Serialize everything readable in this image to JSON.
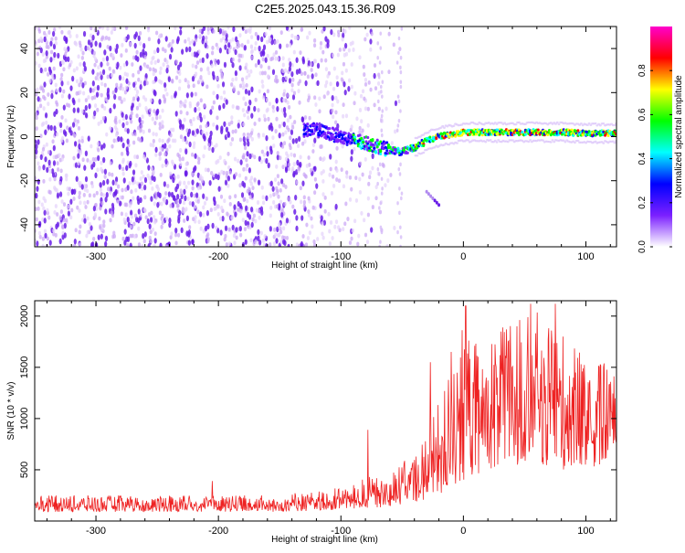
{
  "figure": {
    "title": "C2E5.2025.043.15.36.R09"
  },
  "chart_data": [
    {
      "type": "heatmap",
      "xlabel": "Height of straight line (km)",
      "ylabel": "Frequency (Hz)",
      "xlim": [
        -350,
        125
      ],
      "ylim": [
        -50,
        50
      ],
      "x_ticks": [
        -300,
        -200,
        -100,
        0,
        100
      ],
      "y_ticks": [
        -40,
        -20,
        0,
        20,
        40
      ],
      "ridge": {
        "x": [
          -120,
          -100,
          -80,
          -60,
          -50,
          -40,
          -30,
          -20,
          -10,
          0,
          20,
          40,
          60,
          80,
          100,
          125
        ],
        "y": [
          3,
          0,
          -3,
          -6,
          -7,
          -5,
          -2,
          0,
          1,
          2,
          2,
          2,
          2,
          2,
          1.5,
          1.5
        ]
      },
      "noise_extent_x": [
        -350,
        -50
      ],
      "isolated_feature": {
        "x": [
          -30,
          -20
        ],
        "y": [
          -25,
          -31
        ]
      },
      "colorbar": {
        "label": "Normalized spectral amplitude",
        "range": [
          0.0,
          1.0
        ],
        "ticks": [
          0.0,
          0.2,
          0.4,
          0.6,
          0.8
        ],
        "tick_labels": [
          "0.0",
          "0.2",
          "0.4",
          "0.6",
          "0.8"
        ],
        "colormap": [
          "#ffffff",
          "#7b20ff",
          "#0000ff",
          "#00ffff",
          "#00ff00",
          "#ffff00",
          "#ff0000",
          "#ff00cc"
        ]
      },
      "grid": false
    },
    {
      "type": "line",
      "xlabel": "Height of straight line (km)",
      "ylabel": "SNR (10 * v/v)",
      "xlim": [
        -350,
        125
      ],
      "ylim": [
        0,
        2150
      ],
      "x_ticks": [
        -300,
        -200,
        -100,
        0,
        100
      ],
      "y_ticks": [
        500,
        1000,
        1500,
        2000
      ],
      "series": [
        {
          "color": "#ee2222",
          "envelope": {
            "x": [
              -350,
              -200,
              -150,
              -120,
              -100,
              -80,
              -60,
              -40,
              -20,
              -10,
              0,
              20,
              40,
              60,
              80,
              100,
              125
            ],
            "low": [
              90,
              90,
              90,
              100,
              110,
              120,
              140,
              180,
              250,
              300,
              400,
              500,
              550,
              550,
              500,
              500,
              600
            ],
            "high": [
              250,
              250,
              260,
              290,
              330,
              420,
              500,
              650,
              1150,
              1550,
              1900,
              1800,
              1950,
              2050,
              1900,
              1600,
              1500
            ]
          },
          "spikes": [
            {
              "x": -205,
              "y": 390
            },
            {
              "x": -78,
              "y": 890
            },
            {
              "x": -27,
              "y": 1550
            },
            {
              "x": -10,
              "y": 1650
            },
            {
              "x": 2,
              "y": 2100
            },
            {
              "x": 55,
              "y": 2120
            },
            {
              "x": 75,
              "y": 2120
            }
          ]
        }
      ],
      "grid": false
    }
  ]
}
